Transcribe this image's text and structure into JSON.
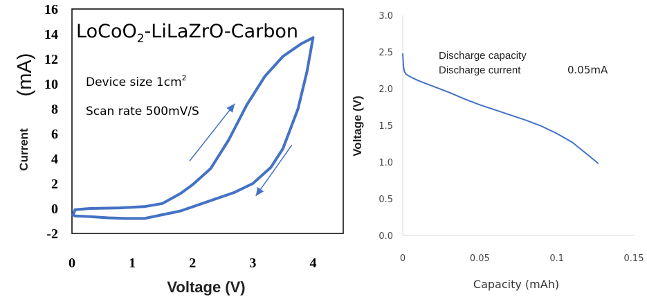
{
  "chart_data": [
    {
      "type": "line",
      "title": "LoCoO2-LiLaZrO-Carbon",
      "title_main": "LoCoO",
      "title_sub": "2",
      "title_rest": "-LiLaZrO-Carbon",
      "annotations": {
        "device_size": "Device size 1cm",
        "device_size_sup": "2",
        "scan_rate": "Scan rate 500mV/S"
      },
      "xlabel": "Voltage (V)",
      "ylabel": "Current",
      "ylabel_unit": "(mA)",
      "xlim": [
        0,
        4.5
      ],
      "ylim": [
        -2,
        16
      ],
      "x_ticks": [
        "0",
        "1",
        "2",
        "3",
        "4"
      ],
      "y_ticks": [
        "-2",
        "0",
        "2",
        "4",
        "6",
        "8",
        "10",
        "12",
        "14",
        "16"
      ],
      "grid": false,
      "series": [
        {
          "color": "#4472c4",
          "x": [
            0.02,
            0.05,
            0.3,
            0.8,
            1.2,
            1.5,
            1.8,
            2.0,
            2.3,
            2.6,
            2.9,
            3.2,
            3.5,
            3.8,
            4.0
          ],
          "y": [
            -0.5,
            -0.1,
            0.0,
            0.05,
            0.15,
            0.4,
            1.2,
            1.9,
            3.2,
            5.5,
            8.3,
            10.6,
            12.2,
            13.2,
            13.7
          ]
        },
        {
          "color": "#4472c4",
          "x": [
            4.0,
            3.9,
            3.75,
            3.5,
            3.3,
            3.0,
            2.7,
            2.4,
            2.1,
            1.8,
            1.5,
            1.2,
            0.9,
            0.6,
            0.3,
            0.05,
            0.02
          ],
          "y": [
            13.7,
            11.0,
            8.0,
            4.8,
            3.3,
            2.0,
            1.3,
            0.8,
            0.3,
            -0.2,
            -0.5,
            -0.8,
            -0.8,
            -0.75,
            -0.65,
            -0.6,
            -0.5
          ]
        }
      ],
      "arrows": [
        {
          "direction": "up",
          "from": [
            1.95,
            3.8
          ],
          "to": [
            2.7,
            8.4
          ]
        },
        {
          "direction": "down",
          "from": [
            3.65,
            5.1
          ],
          "to": [
            3.05,
            1.0
          ]
        }
      ]
    },
    {
      "type": "line",
      "title": "",
      "annotations": {
        "line1": "Discharge capacity",
        "line2": "Discharge current",
        "value": "0.05mA"
      },
      "xlabel": "Capacity (mAh)",
      "ylabel": "Voltage (V)",
      "xlim": [
        0,
        0.15
      ],
      "ylim": [
        0,
        3.0
      ],
      "x_ticks": [
        "0",
        "0.05",
        "0.1",
        "0.15"
      ],
      "y_ticks": [
        "0.0",
        "0.5",
        "1.0",
        "1.5",
        "2.0",
        "2.5",
        "3.0"
      ],
      "grid": false,
      "series": [
        {
          "color": "#4472c4",
          "x": [
            0.0,
            0.0005,
            0.001,
            0.002,
            0.005,
            0.01,
            0.02,
            0.03,
            0.04,
            0.05,
            0.06,
            0.07,
            0.08,
            0.09,
            0.1,
            0.11,
            0.12,
            0.127
          ],
          "y": [
            2.48,
            2.3,
            2.24,
            2.2,
            2.16,
            2.11,
            2.03,
            1.95,
            1.86,
            1.78,
            1.71,
            1.64,
            1.57,
            1.49,
            1.39,
            1.27,
            1.1,
            0.98
          ]
        }
      ]
    }
  ]
}
